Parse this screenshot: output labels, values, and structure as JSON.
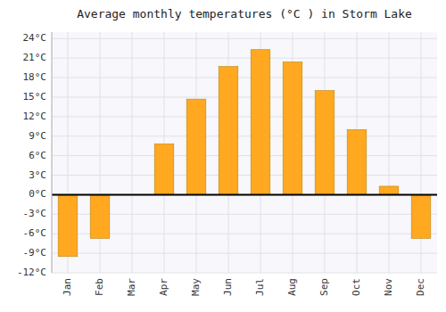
{
  "chart_data": {
    "type": "bar",
    "title": "Average monthly temperatures (°C ) in Storm Lake",
    "categories": [
      "Jan",
      "Feb",
      "Mar",
      "Apr",
      "May",
      "Jun",
      "Jul",
      "Aug",
      "Sep",
      "Oct",
      "Nov",
      "Dec"
    ],
    "values": [
      -9.5,
      -6.7,
      0.0,
      7.8,
      14.7,
      19.7,
      22.3,
      20.4,
      16.0,
      10.0,
      1.3,
      -6.7
    ],
    "color": "#FFA820",
    "ylim": [
      -12,
      25
    ],
    "yticks": [
      {
        "value": -12,
        "label": "-12°C"
      },
      {
        "value": -9,
        "label": "-9°C"
      },
      {
        "value": -6,
        "label": "-6°C"
      },
      {
        "value": -3,
        "label": "-3°C"
      },
      {
        "value": 0,
        "label": "0°C"
      },
      {
        "value": 3,
        "label": "3°C"
      },
      {
        "value": 6,
        "label": "6°C"
      },
      {
        "value": 9,
        "label": "9°C"
      },
      {
        "value": 12,
        "label": "12°C"
      },
      {
        "value": 15,
        "label": "15°C"
      },
      {
        "value": 18,
        "label": "18°C"
      },
      {
        "value": 21,
        "label": "21°C"
      },
      {
        "value": 24,
        "label": "24°C"
      }
    ],
    "grid": true
  }
}
